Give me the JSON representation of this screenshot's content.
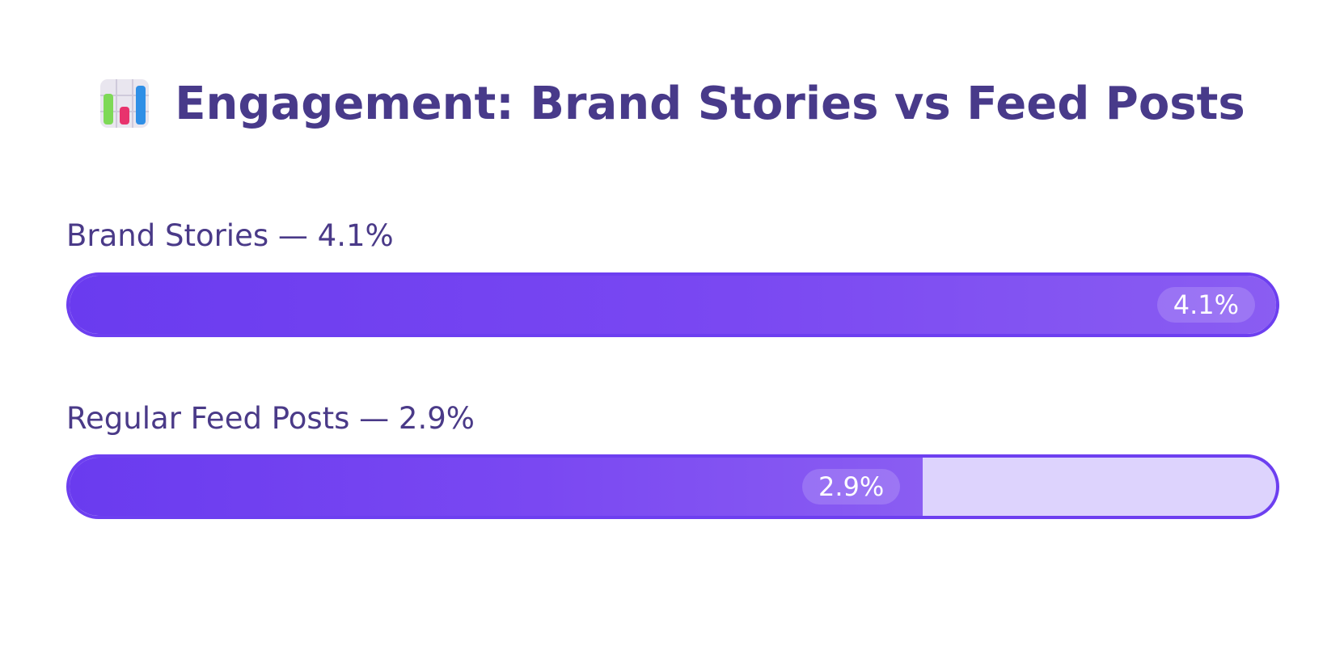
{
  "title": "Engagement: Brand Stories vs Feed Posts",
  "title_icon": "bar-chart-icon",
  "colors": {
    "title": "#483a8a",
    "label": "#4a3a88",
    "bar_fill_start": "#6a3bef",
    "bar_fill_end": "#8a5df2",
    "bar_track": "#ddd3fd",
    "bar_border": "#6d3ff0"
  },
  "rows": [
    {
      "label": "Brand Stories — 4.1%",
      "value_label": "4.1%"
    },
    {
      "label": "Regular Feed Posts — 2.9%",
      "value_label": "2.9%"
    }
  ],
  "chart_data": {
    "type": "bar",
    "orientation": "horizontal",
    "title": "Engagement: Brand Stories vs Feed Posts",
    "categories": [
      "Brand Stories",
      "Regular Feed Posts"
    ],
    "values": [
      4.1,
      2.9
    ],
    "unit": "%",
    "xlim": [
      0,
      4.1
    ]
  }
}
